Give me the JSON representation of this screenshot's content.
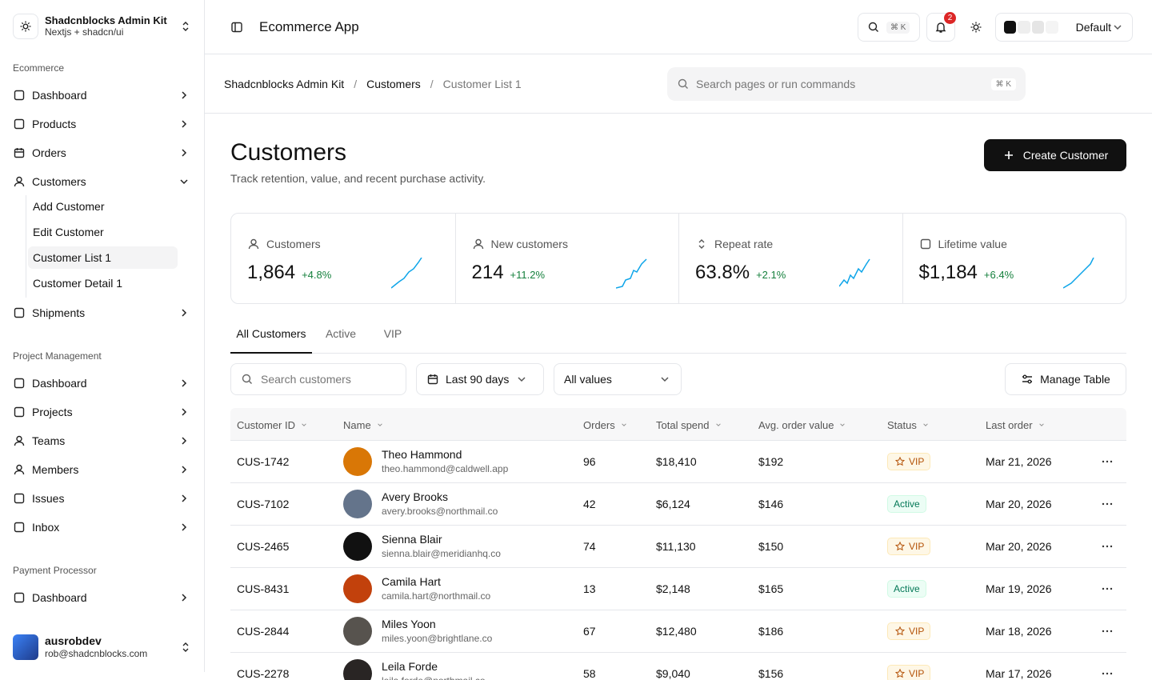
{
  "sidebar": {
    "brand": {
      "title": "Shadcnblocks Admin Kit",
      "subtitle": "Nextjs + shadcn/ui"
    },
    "sections": [
      {
        "label": "Ecommerce",
        "items": [
          {
            "label": "Dashboard"
          },
          {
            "label": "Products"
          },
          {
            "label": "Orders"
          },
          {
            "label": "Customers",
            "children": [
              "Add Customer",
              "Edit Customer",
              "Customer List 1",
              "Customer Detail 1"
            ]
          },
          {
            "label": "Shipments"
          }
        ]
      },
      {
        "label": "Project Management",
        "items": [
          {
            "label": "Dashboard"
          },
          {
            "label": "Projects"
          },
          {
            "label": "Teams"
          },
          {
            "label": "Members"
          },
          {
            "label": "Issues"
          },
          {
            "label": "Inbox"
          }
        ]
      },
      {
        "label": "Payment Processor",
        "items": [
          {
            "label": "Dashboard"
          }
        ]
      }
    ],
    "user": {
      "name": "ausrobdev",
      "email": "rob@shadcnblocks.com"
    }
  },
  "header": {
    "title": "Ecommerce App",
    "search_kbd": "⌘ K",
    "notifications": "2",
    "theme": "Default"
  },
  "breadcrumb": {
    "items": [
      "Shadcnblocks Admin Kit",
      "Customers",
      "Customer List 1"
    ],
    "separator": "/",
    "command_placeholder": "Search pages or run commands",
    "command_kbd": "⌘ K"
  },
  "page": {
    "title": "Customers",
    "subtitle": "Track retention, value, and recent purchase activity.",
    "create_button": "Create Customer"
  },
  "stats": [
    {
      "label": "Customers",
      "value": "1,864",
      "change": "+4.8%"
    },
    {
      "label": "New customers",
      "value": "214",
      "change": "+11.2%"
    },
    {
      "label": "Repeat rate",
      "value": "63.8%",
      "change": "+2.1%"
    },
    {
      "label": "Lifetime value",
      "value": "$1,184",
      "change": "+6.4%"
    }
  ],
  "tabs": [
    "All Customers",
    "Active",
    "VIP"
  ],
  "filters": {
    "search_placeholder": "Search customers",
    "date_range": "Last 90 days",
    "values": "All values",
    "manage": "Manage Table"
  },
  "table": {
    "columns": [
      "Customer ID",
      "Name",
      "Orders",
      "Total spend",
      "Avg. order value",
      "Status",
      "Last order"
    ],
    "rows": [
      [
        "CUS-1742",
        "Theo Hammond",
        "theo.hammond@caldwell.app",
        "96",
        "$18,410",
        "$192",
        "VIP",
        "Mar 21, 2026"
      ],
      [
        "CUS-7102",
        "Avery Brooks",
        "avery.brooks@northmail.co",
        "42",
        "$6,124",
        "$146",
        "Active",
        "Mar 20, 2026"
      ],
      [
        "CUS-2465",
        "Sienna Blair",
        "sienna.blair@meridianhq.co",
        "74",
        "$11,130",
        "$150",
        "VIP",
        "Mar 20, 2026"
      ],
      [
        "CUS-8431",
        "Camila Hart",
        "camila.hart@northmail.co",
        "13",
        "$2,148",
        "$165",
        "Active",
        "Mar 19, 2026"
      ],
      [
        "CUS-2844",
        "Miles Yoon",
        "miles.yoon@brightlane.co",
        "67",
        "$12,480",
        "$186",
        "VIP",
        "Mar 18, 2026"
      ],
      [
        "CUS-2278",
        "Leila Forde",
        "leila.forde@northmail.co",
        "58",
        "$9,040",
        "$156",
        "VIP",
        "Mar 17, 2026"
      ]
    ]
  }
}
